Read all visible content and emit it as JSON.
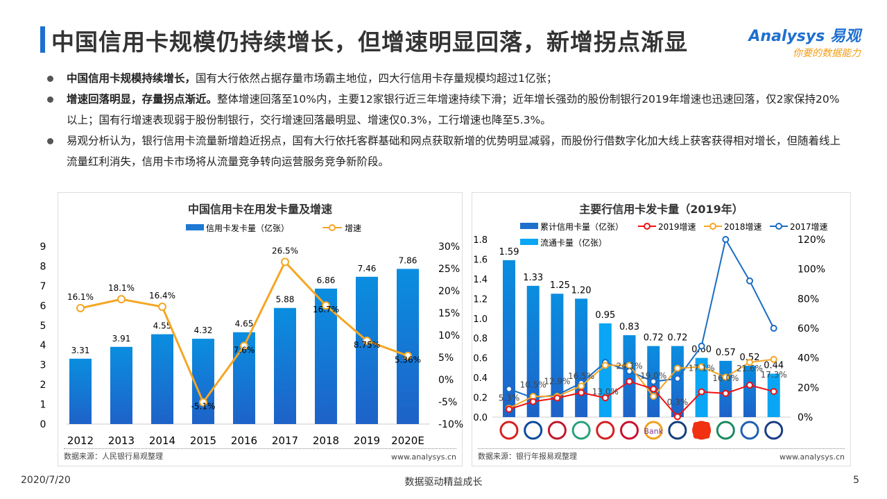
{
  "title": "中国信用卡规模仍持续增长，但增速明显回落，新增拐点渐显",
  "logo": {
    "line1": "Analysys 易观",
    "line2": "你要的数据能力"
  },
  "bullets": [
    "中国信用卡规模持续增长，国有大行依然占据存量市场霸主地位，四大行信用卡存量规模均超过1亿张；",
    "增速回落明显，存量拐点渐近。整体增速回落至10%内，主要12家银行近三年增速持续下滑；近年增长强劲的股份制银行2019年增速也迅速回落，仅2家保持20%以上；国有行增速表现弱于股份制银行，交行增速回落最明显、增速仅0.3%，工行增速也降至5.3%。",
    "易观分析认为，银行信用卡流量新增趋近拐点，国有大行依托客群基础和网点获取新增的优势明显减弱，而股份行借数字化加大线上获客获得相对增长，但随着线上流量红利消失，信用卡市场将从流量竞争转向运营服务竞争新阶段。"
  ],
  "bullet_bold": [
    "中国信用卡规模持续增长，",
    "增速回落明显，存量拐点渐近。"
  ],
  "left_panel": {
    "source": "数据来源：人民银行易观整理",
    "website": "www.analysys.cn"
  },
  "right_panel": {
    "source": "数据来源：银行年报易观整理",
    "website": "www.analysys.cn"
  },
  "chart_data": [
    {
      "type": "bar",
      "title": "中国信用卡在用发卡量及增速",
      "categories": [
        "2012",
        "2013",
        "2014",
        "2015",
        "2016",
        "2017",
        "2018",
        "2019",
        "2020E"
      ],
      "series": [
        {
          "name": "信用卡发卡量（亿张）",
          "type": "bar",
          "axis": "left",
          "color": "#1e78d4",
          "values": [
            3.31,
            3.91,
            4.55,
            4.32,
            4.65,
            5.88,
            6.86,
            7.46,
            7.86
          ]
        },
        {
          "name": "增速",
          "type": "line",
          "axis": "right",
          "color": "#f5a623",
          "values": [
            16.1,
            18.1,
            16.4,
            -5.1,
            7.6,
            26.5,
            16.7,
            8.75,
            5.36
          ],
          "labels": [
            "16.1%",
            "18.1%",
            "16.4%",
            "-5.1%",
            "7.6%",
            "26.5%",
            "16.7%",
            "8.75%",
            "5.36%"
          ]
        }
      ],
      "ylim": [
        0,
        9
      ],
      "yticks": [
        "0",
        "1",
        "2",
        "3",
        "4",
        "5",
        "6",
        "7",
        "8",
        "9"
      ],
      "y2lim": [
        -10,
        30
      ],
      "y2ticks": [
        "-10%",
        "-5%",
        "0%",
        "5%",
        "10%",
        "15%",
        "20%",
        "25%",
        "30%"
      ],
      "legend": "top"
    },
    {
      "type": "bar",
      "title": "主要行信用卡发卡量（2019年）",
      "categories_icons": [
        "icbc-logo",
        "ccb-logo",
        "boc-logo",
        "abc-logo",
        "cmb-logo",
        "citic-logo",
        "ceb-logo",
        "bocom-logo",
        "pingan-logo",
        "cib-logo",
        "cmbc-logo",
        "spdb-logo"
      ],
      "bar_values": [
        1.59,
        1.33,
        1.25,
        1.2,
        0.95,
        0.83,
        0.72,
        0.72,
        0.6,
        0.57,
        0.52,
        0.44
      ],
      "bar_labels": [
        "1.59",
        "1.33",
        "1.25",
        "1.20",
        "0.95",
        "0.83",
        "0.72",
        "0.72",
        "0.60",
        "0.57",
        "0.52",
        "0.44"
      ],
      "bar_kind": [
        "cum",
        "cum",
        "cum",
        "cum",
        "circ",
        "cum",
        "cum",
        "cum",
        "circ",
        "cum",
        "cum",
        "circ"
      ],
      "bar_series": [
        {
          "key": "cum",
          "name": "累计信用卡量（亿张）",
          "color": "#1e70cc"
        },
        {
          "key": "circ",
          "name": "流通卡量（亿张）",
          "color": "#0aa6f5"
        }
      ],
      "line_series": [
        {
          "name": "2019增速",
          "color": "#f01010",
          "values": [
            5.3,
            10.5,
            12.9,
            16.5,
            13.0,
            24.1,
            19.0,
            0.3,
            17.1,
            16.0,
            21.6,
            17.3
          ],
          "labels": [
            "5.3%",
            "10.5%",
            "12.9%",
            "16.5%",
            "13.0%",
            "24.1%",
            "19.0%",
            "0.3%",
            "17.1%",
            "16.0%",
            "21.6%",
            "17.3%"
          ]
        },
        {
          "name": "2018增速",
          "color": "#f5a623",
          "values": [
            6,
            14,
            14,
            21,
            35,
            35,
            14,
            33,
            34,
            27,
            37,
            39
          ]
        },
        {
          "name": "2017增速",
          "color": "#1a6cc4",
          "values": [
            19,
            13,
            15,
            23,
            37,
            31,
            24,
            26,
            48,
            120,
            92,
            60
          ]
        }
      ],
      "ylim": [
        0,
        1.8
      ],
      "yticks": [
        "0.0",
        "0.2",
        "0.4",
        "0.6",
        "0.8",
        "1.0",
        "1.2",
        "1.4",
        "1.6",
        "1.8"
      ],
      "y2lim": [
        0,
        120
      ],
      "y2ticks": [
        "0%",
        "20%",
        "40%",
        "60%",
        "80%",
        "100%",
        "120%"
      ],
      "legend": "top"
    }
  ],
  "footer": {
    "date": "2020/7/20",
    "slogan": "数据驱动精益成长",
    "page": "5"
  }
}
